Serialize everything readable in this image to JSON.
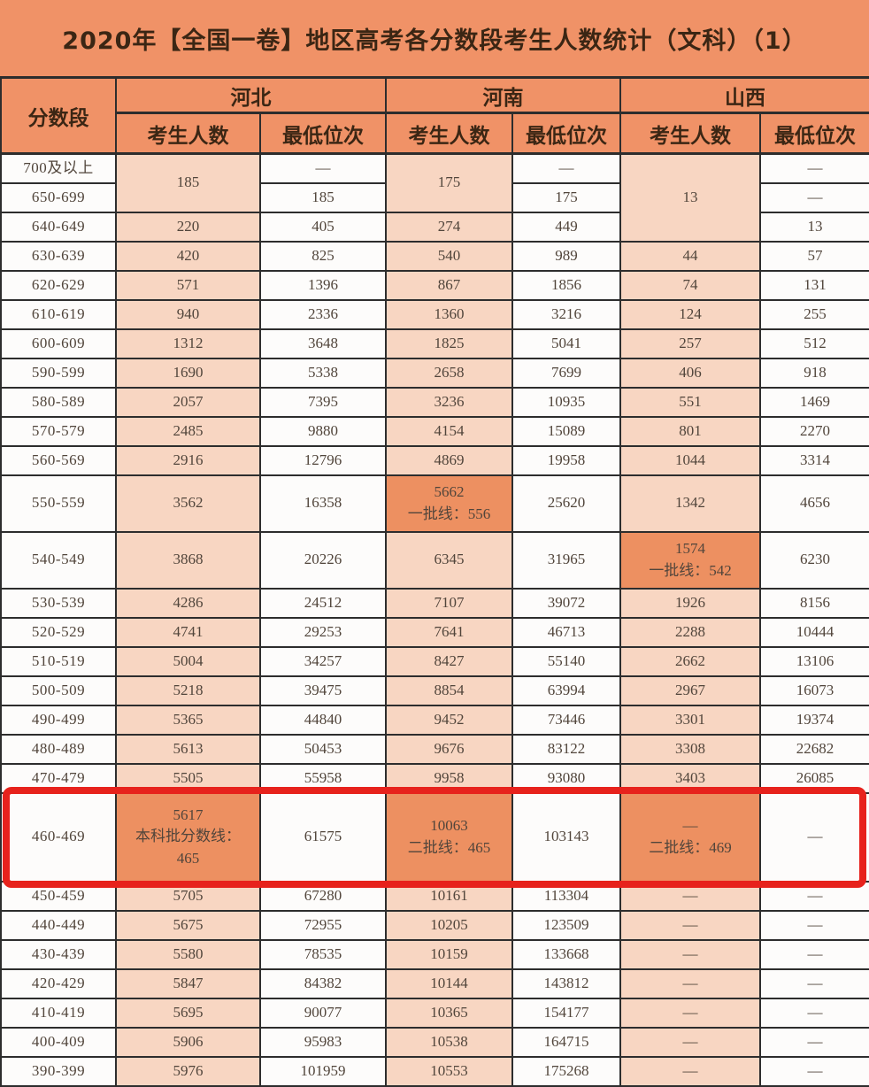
{
  "title": "2020年【全国一卷】地区高考各分数段考生人数统计（文科）（1）",
  "table": {
    "header": {
      "score_band": "分数段",
      "provinces": [
        "河北",
        "河南",
        "山西"
      ],
      "sub": [
        "考生人数",
        "最低位次"
      ]
    },
    "rows": [
      {
        "band": "700及以上",
        "c": [
          {
            "t": "185",
            "rs": 2
          },
          {
            "t": "—"
          },
          {
            "t": "175",
            "rs": 2
          },
          {
            "t": "—"
          },
          {
            "t": "13",
            "rs": 3
          },
          {
            "t": "—"
          }
        ]
      },
      {
        "band": "650-699",
        "c": [
          null,
          {
            "t": "185"
          },
          null,
          {
            "t": "175"
          },
          null,
          {
            "t": "—"
          }
        ]
      },
      {
        "band": "640-649",
        "c": [
          {
            "t": "220"
          },
          {
            "t": "405"
          },
          {
            "t": "274"
          },
          {
            "t": "449"
          },
          null,
          {
            "t": "13"
          }
        ]
      },
      {
        "band": "630-639",
        "c": [
          {
            "t": "420"
          },
          {
            "t": "825"
          },
          {
            "t": "540"
          },
          {
            "t": "989"
          },
          {
            "t": "44"
          },
          {
            "t": "57"
          }
        ]
      },
      {
        "band": "620-629",
        "c": [
          {
            "t": "571"
          },
          {
            "t": "1396"
          },
          {
            "t": "867"
          },
          {
            "t": "1856"
          },
          {
            "t": "74"
          },
          {
            "t": "131"
          }
        ]
      },
      {
        "band": "610-619",
        "c": [
          {
            "t": "940"
          },
          {
            "t": "2336"
          },
          {
            "t": "1360"
          },
          {
            "t": "3216"
          },
          {
            "t": "124"
          },
          {
            "t": "255"
          }
        ]
      },
      {
        "band": "600-609",
        "c": [
          {
            "t": "1312"
          },
          {
            "t": "3648"
          },
          {
            "t": "1825"
          },
          {
            "t": "5041"
          },
          {
            "t": "257"
          },
          {
            "t": "512"
          }
        ]
      },
      {
        "band": "590-599",
        "c": [
          {
            "t": "1690"
          },
          {
            "t": "5338"
          },
          {
            "t": "2658"
          },
          {
            "t": "7699"
          },
          {
            "t": "406"
          },
          {
            "t": "918"
          }
        ]
      },
      {
        "band": "580-589",
        "c": [
          {
            "t": "2057"
          },
          {
            "t": "7395"
          },
          {
            "t": "3236"
          },
          {
            "t": "10935"
          },
          {
            "t": "551"
          },
          {
            "t": "1469"
          }
        ]
      },
      {
        "band": "570-579",
        "c": [
          {
            "t": "2485"
          },
          {
            "t": "9880"
          },
          {
            "t": "4154"
          },
          {
            "t": "15089"
          },
          {
            "t": "801"
          },
          {
            "t": "2270"
          }
        ]
      },
      {
        "band": "560-569",
        "c": [
          {
            "t": "2916"
          },
          {
            "t": "12796"
          },
          {
            "t": "4869"
          },
          {
            "t": "19958"
          },
          {
            "t": "1044"
          },
          {
            "t": "3314"
          }
        ]
      },
      {
        "band": "550-559",
        "c": [
          {
            "t": "3562"
          },
          {
            "t": "16358"
          },
          {
            "t": "5662\n一批线：556",
            "hl": true
          },
          {
            "t": "25620"
          },
          {
            "t": "1342"
          },
          {
            "t": "4656"
          }
        ]
      },
      {
        "band": "540-549",
        "c": [
          {
            "t": "3868"
          },
          {
            "t": "20226"
          },
          {
            "t": "6345"
          },
          {
            "t": "31965"
          },
          {
            "t": "1574\n一批线：542",
            "hl": true
          },
          {
            "t": "6230"
          }
        ]
      },
      {
        "band": "530-539",
        "c": [
          {
            "t": "4286"
          },
          {
            "t": "24512"
          },
          {
            "t": "7107"
          },
          {
            "t": "39072"
          },
          {
            "t": "1926"
          },
          {
            "t": "8156"
          }
        ]
      },
      {
        "band": "520-529",
        "c": [
          {
            "t": "4741"
          },
          {
            "t": "29253"
          },
          {
            "t": "7641"
          },
          {
            "t": "46713"
          },
          {
            "t": "2288"
          },
          {
            "t": "10444"
          }
        ]
      },
      {
        "band": "510-519",
        "c": [
          {
            "t": "5004"
          },
          {
            "t": "34257"
          },
          {
            "t": "8427"
          },
          {
            "t": "55140"
          },
          {
            "t": "2662"
          },
          {
            "t": "13106"
          }
        ]
      },
      {
        "band": "500-509",
        "c": [
          {
            "t": "5218"
          },
          {
            "t": "39475"
          },
          {
            "t": "8854"
          },
          {
            "t": "63994"
          },
          {
            "t": "2967"
          },
          {
            "t": "16073"
          }
        ]
      },
      {
        "band": "490-499",
        "c": [
          {
            "t": "5365"
          },
          {
            "t": "44840"
          },
          {
            "t": "9452"
          },
          {
            "t": "73446"
          },
          {
            "t": "3301"
          },
          {
            "t": "19374"
          }
        ]
      },
      {
        "band": "480-489",
        "c": [
          {
            "t": "5613"
          },
          {
            "t": "50453"
          },
          {
            "t": "9676"
          },
          {
            "t": "83122"
          },
          {
            "t": "3308"
          },
          {
            "t": "22682"
          }
        ]
      },
      {
        "band": "470-479",
        "c": [
          {
            "t": "5505"
          },
          {
            "t": "55958"
          },
          {
            "t": "9958"
          },
          {
            "t": "93080"
          },
          {
            "t": "3403"
          },
          {
            "t": "26085"
          }
        ]
      },
      {
        "band": "460-469",
        "boxed": true,
        "c": [
          {
            "t": "5617\n本科批分数线：\n465",
            "hl": true
          },
          {
            "t": "61575"
          },
          {
            "t": "10063\n二批线：465",
            "hl": true
          },
          {
            "t": "103143"
          },
          {
            "t": "—\n二批线：469",
            "hl": true
          },
          {
            "t": "—"
          }
        ]
      },
      {
        "band": "450-459",
        "c": [
          {
            "t": "5705"
          },
          {
            "t": "67280"
          },
          {
            "t": "10161"
          },
          {
            "t": "113304"
          },
          {
            "t": "—"
          },
          {
            "t": "—"
          }
        ]
      },
      {
        "band": "440-449",
        "c": [
          {
            "t": "5675"
          },
          {
            "t": "72955"
          },
          {
            "t": "10205"
          },
          {
            "t": "123509"
          },
          {
            "t": "—"
          },
          {
            "t": "—"
          }
        ]
      },
      {
        "band": "430-439",
        "c": [
          {
            "t": "5580"
          },
          {
            "t": "78535"
          },
          {
            "t": "10159"
          },
          {
            "t": "133668"
          },
          {
            "t": "—"
          },
          {
            "t": "—"
          }
        ]
      },
      {
        "band": "420-429",
        "c": [
          {
            "t": "5847"
          },
          {
            "t": "84382"
          },
          {
            "t": "10144"
          },
          {
            "t": "143812"
          },
          {
            "t": "—"
          },
          {
            "t": "—"
          }
        ]
      },
      {
        "band": "410-419",
        "c": [
          {
            "t": "5695"
          },
          {
            "t": "90077"
          },
          {
            "t": "10365"
          },
          {
            "t": "154177"
          },
          {
            "t": "—"
          },
          {
            "t": "—"
          }
        ]
      },
      {
        "band": "400-409",
        "c": [
          {
            "t": "5906"
          },
          {
            "t": "95983"
          },
          {
            "t": "10538"
          },
          {
            "t": "164715"
          },
          {
            "t": "—"
          },
          {
            "t": "—"
          }
        ]
      },
      {
        "band": "390-399",
        "c": [
          {
            "t": "5976"
          },
          {
            "t": "101959"
          },
          {
            "t": "10553"
          },
          {
            "t": "175268"
          },
          {
            "t": "—"
          },
          {
            "t": "—"
          }
        ]
      }
    ]
  }
}
